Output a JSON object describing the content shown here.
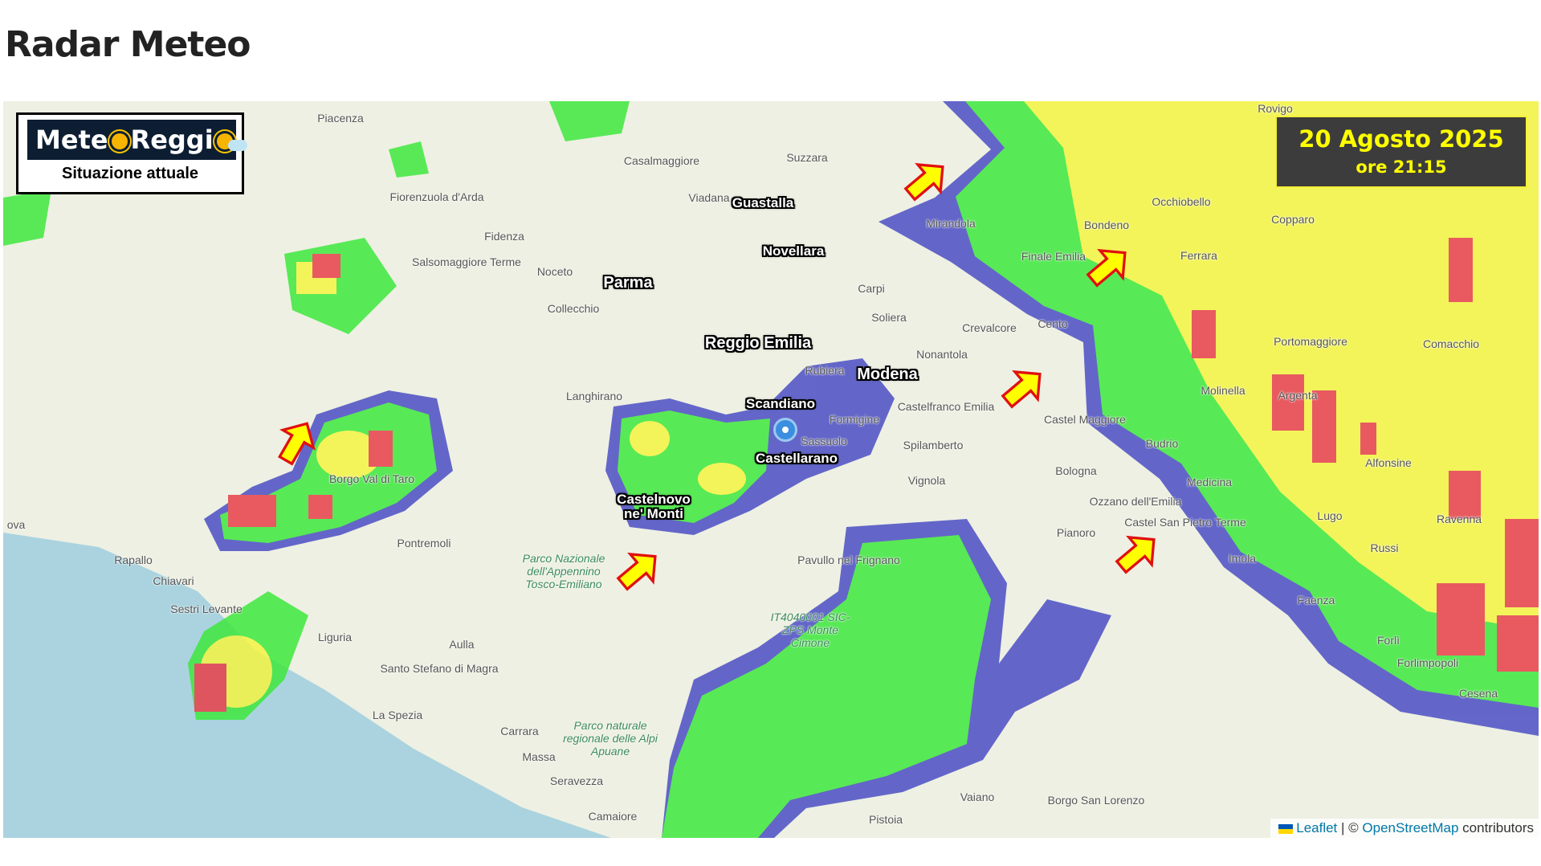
{
  "page": {
    "title": "Radar Meteo"
  },
  "logo": {
    "text_part1": "Mete",
    "text_part2": "Reggi",
    "subtitle": "Situazione attuale"
  },
  "timestamp": {
    "date": "20 Agosto 2025",
    "time": "ore 21:15"
  },
  "attribution": {
    "leaflet": "Leaflet",
    "separator": "| ©",
    "osm": "OpenStreetMap",
    "suffix": "contributors"
  },
  "cities": [
    "Guastalla",
    "Novellara",
    "Parma",
    "Reggio Emilia",
    "Modena",
    "Scandiano",
    "Castellarano",
    "Castelnovo\nne' Monti"
  ],
  "places": [
    "Piacenza",
    "Casalmaggiore",
    "Suzzara",
    "Rovigo",
    "Fiorenzuola d'Arda",
    "Viadana",
    "Mirandola",
    "Bondeno",
    "Occhiobello",
    "Copparo",
    "Ferrara",
    "Fidenza",
    "Salsomaggiore Terme",
    "Noceto",
    "Finale Emilia",
    "Carpi",
    "Soliera",
    "Collecchio",
    "Crevalcore",
    "Cento",
    "Portomaggiore",
    "Comacchio",
    "Nonantola",
    "Rubiera",
    "Langhirano",
    "Castelfranco Emilia",
    "Molinella",
    "Argenta",
    "Formigine",
    "Castel Maggiore",
    "Sassuolo",
    "Spilamberto",
    "Budrio",
    "Alfonsine",
    "Borgo Val di Taro",
    "Bologna",
    "Vignola",
    "Medicina",
    "Ozzano dell'Emilia",
    "Ravenna",
    "Lugo",
    "Castel San Pietro Terme",
    "Pianoro",
    "Russi",
    "Imola",
    "Pontremoli",
    "Rapallo",
    "Pavullo nel Frignano",
    "Chiavari",
    "Faenza",
    "Sestri Levante",
    "Liguria",
    "Aulla",
    "Forlì",
    "Forlimpopoli",
    "Santo Stefano di Magra",
    "Cesena",
    "La Spezia",
    "Carrara",
    "Massa",
    "Seravezza",
    "Vaiano",
    "Borgo San Lorenzo",
    "Camaiore",
    "Pistoia",
    "ova",
    "Parco Nazionale dell'Appennino Tosco-Emiliano",
    "Parco naturale regionale delle Alpi Apuane",
    "IT4040001 SIC-ZPS Monte Cimone"
  ],
  "radar_colors": {
    "light": "#4b4fc4",
    "moderate": "#3ee83e",
    "heavy": "#f5f542",
    "intense": "#e8404a"
  },
  "arrow_color": "#ffff00",
  "sea_color": "#aad3df"
}
